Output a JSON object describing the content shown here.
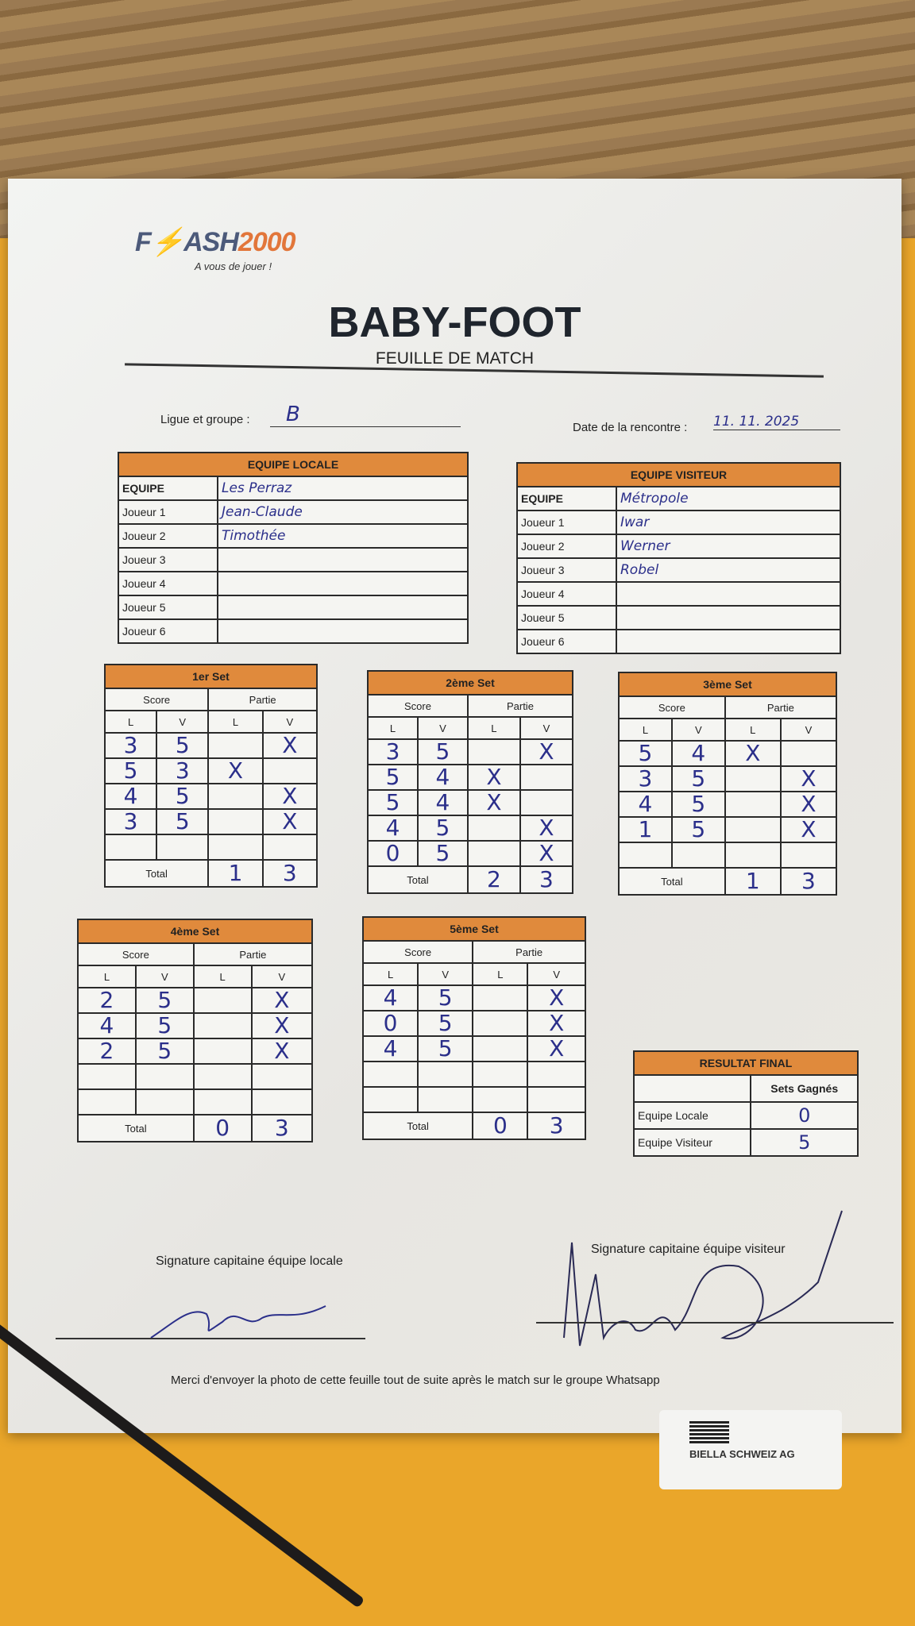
{
  "brand": {
    "logo": "FLASH2000",
    "logo_a": "F",
    "logo_b": "ASH",
    "logo_c": "2000",
    "tagline": "A vous de jouer !"
  },
  "title": "BABY-FOOT",
  "subtitle": "FEUILLE DE MATCH",
  "ligue_label": "Ligue et groupe :",
  "ligue_value": "B",
  "date_label": "Date de la rencontre :",
  "date_value": "11. 11. 2025",
  "local": {
    "header": "EQUIPE LOCALE",
    "rows": [
      [
        "EQUIPE",
        "Les Perraz"
      ],
      [
        "Joueur 1",
        "Jean-Claude"
      ],
      [
        "Joueur 2",
        "Timothée"
      ],
      [
        "Joueur 3",
        ""
      ],
      [
        "Joueur 4",
        ""
      ],
      [
        "Joueur 5",
        ""
      ],
      [
        "Joueur 6",
        ""
      ]
    ]
  },
  "visitor": {
    "header": "EQUIPE VISITEUR",
    "rows": [
      [
        "EQUIPE",
        "Métropole"
      ],
      [
        "Joueur 1",
        "Iwar"
      ],
      [
        "Joueur 2",
        "Werner"
      ],
      [
        "Joueur 3",
        "Robel"
      ],
      [
        "Joueur 4",
        ""
      ],
      [
        "Joueur 5",
        ""
      ],
      [
        "Joueur 6",
        ""
      ]
    ]
  },
  "set_labels": {
    "score": "Score",
    "partie": "Partie",
    "l": "L",
    "v": "V",
    "total": "Total"
  },
  "sets": [
    {
      "title": "1er Set",
      "rows": [
        [
          "3",
          "5",
          "",
          "X"
        ],
        [
          "5",
          "3",
          "X",
          ""
        ],
        [
          "4",
          "5",
          "",
          "X"
        ],
        [
          "3",
          "5",
          "",
          "X"
        ],
        [
          "",
          "",
          "",
          ""
        ]
      ],
      "total": [
        "1",
        "3"
      ]
    },
    {
      "title": "2ème Set",
      "rows": [
        [
          "3",
          "5",
          "",
          "X"
        ],
        [
          "5",
          "4",
          "X",
          ""
        ],
        [
          "5",
          "4",
          "X",
          ""
        ],
        [
          "4",
          "5",
          "",
          "X"
        ],
        [
          "0",
          "5",
          "",
          "X"
        ]
      ],
      "total": [
        "2",
        "3"
      ]
    },
    {
      "title": "3ème Set",
      "rows": [
        [
          "5",
          "4",
          "X",
          ""
        ],
        [
          "3",
          "5",
          "",
          "X"
        ],
        [
          "4",
          "5",
          "",
          "X"
        ],
        [
          "1",
          "5",
          "",
          "X"
        ],
        [
          "",
          "",
          "",
          ""
        ]
      ],
      "total": [
        "1",
        "3"
      ]
    },
    {
      "title": "4ème Set",
      "rows": [
        [
          "2",
          "5",
          "",
          "X"
        ],
        [
          "4",
          "5",
          "",
          "X"
        ],
        [
          "2",
          "5",
          "",
          "X"
        ],
        [
          "",
          "",
          "",
          ""
        ],
        [
          "",
          "",
          "",
          ""
        ]
      ],
      "total": [
        "0",
        "3"
      ]
    },
    {
      "title": "5ème Set",
      "rows": [
        [
          "4",
          "5",
          "",
          "X"
        ],
        [
          "0",
          "5",
          "",
          "X"
        ],
        [
          "4",
          "5",
          "",
          "X"
        ],
        [
          "",
          "",
          "",
          ""
        ],
        [
          "",
          "",
          "",
          ""
        ]
      ],
      "total": [
        "0",
        "3"
      ]
    }
  ],
  "result": {
    "header": "RESULTAT FINAL",
    "col": "Sets Gagnés",
    "rows": [
      [
        "Equipe Locale",
        "0"
      ],
      [
        "Equipe Visiteur",
        "5"
      ]
    ]
  },
  "signatures": {
    "local": "Signature capitaine équipe locale",
    "visitor": "Signature capitaine équipe visiteur"
  },
  "footer": "Merci d'envoyer la photo de cette feuille tout de suite après le match sur le groupe Whatsapp",
  "sticker": "BIELLA SCHWEIZ AG",
  "colors": {
    "header_orange": "#e08a3c",
    "ink": "#2b2f8a",
    "logo_blue": "#4c5a7a",
    "logo_orange": "#e2763a"
  }
}
